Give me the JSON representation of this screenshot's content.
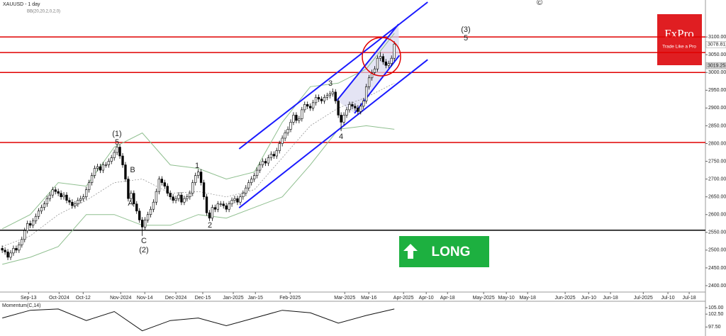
{
  "chart_data": {
    "type": "candlestick",
    "title": "XAUUSD - 1 day",
    "indicator_label": "BB(20,20,2,0,2,0)",
    "copyright": "©",
    "logo": {
      "brand": "FxPro",
      "tagline": "Trade Like a Pro"
    },
    "signal": "LONG",
    "open": [
      2505,
      2500,
      2495,
      2480,
      2492,
      2505,
      2500,
      2515,
      2530,
      2555,
      2575,
      2570,
      2582,
      2595,
      2610,
      2620,
      2630,
      2645,
      2655,
      2670,
      2665,
      2660,
      2650,
      2655,
      2640,
      2635,
      2625,
      2630,
      2640,
      2645,
      2650,
      2670,
      2690,
      2710,
      2730,
      2735,
      2725,
      2740,
      2740,
      2750,
      2760,
      2775,
      2790,
      2765,
      2740,
      2700,
      2645,
      2660,
      2630,
      2610,
      2585,
      2565,
      2585,
      2600,
      2615,
      2635,
      2665,
      2700,
      2690,
      2680,
      2660,
      2650,
      2640,
      2645,
      2655,
      2635,
      2645,
      2650,
      2660,
      2690,
      2710,
      2720,
      2690,
      2650,
      2605,
      2590,
      2620,
      2615,
      2630,
      2630,
      2625,
      2615,
      2630,
      2640,
      2645,
      2635,
      2650,
      2660,
      2675,
      2690,
      2700,
      2710,
      2725,
      2740,
      2750,
      2745,
      2760,
      2770,
      2765,
      2780,
      2800,
      2815,
      2830,
      2840,
      2860,
      2880,
      2865,
      2870,
      2895,
      2910,
      2905,
      2900,
      2915,
      2930,
      2925,
      2920,
      2930,
      2935,
      2940,
      2945,
      2920,
      2880,
      2860,
      2880,
      2895,
      2910,
      2905,
      2900,
      2890,
      2905,
      2920,
      2960,
      2985,
      3000,
      3010,
      3040,
      3045,
      3030,
      3020,
      3025,
      3040
    ],
    "high": [
      2513,
      2508,
      2503,
      2500,
      2513,
      2513,
      2523,
      2538,
      2563,
      2583,
      2583,
      2590,
      2603,
      2618,
      2628,
      2638,
      2653,
      2663,
      2678,
      2678,
      2673,
      2668,
      2663,
      2663,
      2648,
      2643,
      2638,
      2648,
      2653,
      2658,
      2678,
      2698,
      2718,
      2738,
      2743,
      2743,
      2748,
      2748,
      2758,
      2768,
      2783,
      2798,
      2798,
      2773,
      2748,
      2708,
      2668,
      2668,
      2638,
      2618,
      2593,
      2593,
      2608,
      2623,
      2643,
      2673,
      2708,
      2708,
      2698,
      2688,
      2668,
      2658,
      2653,
      2663,
      2663,
      2653,
      2658,
      2668,
      2698,
      2718,
      2728,
      2728,
      2698,
      2658,
      2613,
      2628,
      2628,
      2638,
      2638,
      2638,
      2633,
      2638,
      2648,
      2653,
      2653,
      2658,
      2668,
      2683,
      2698,
      2708,
      2718,
      2733,
      2748,
      2758,
      2758,
      2768,
      2778,
      2778,
      2788,
      2808,
      2823,
      2838,
      2848,
      2868,
      2888,
      2888,
      2878,
      2903,
      2918,
      2918,
      2913,
      2923,
      2938,
      2938,
      2933,
      2938,
      2943,
      2948,
      2955,
      2953,
      2928,
      2888,
      2888,
      2903,
      2918,
      2918,
      2913,
      2908,
      2913,
      2928,
      2968,
      2993,
      3008,
      3018,
      3048,
      3057,
      3053,
      3038,
      3033,
      3048,
      3088
    ],
    "low": [
      2492,
      2487,
      2472,
      2472,
      2484,
      2492,
      2492,
      2507,
      2522,
      2547,
      2562,
      2562,
      2574,
      2587,
      2602,
      2612,
      2622,
      2637,
      2647,
      2657,
      2652,
      2642,
      2642,
      2632,
      2627,
      2617,
      2617,
      2622,
      2632,
      2637,
      2642,
      2662,
      2682,
      2702,
      2722,
      2717,
      2717,
      2732,
      2732,
      2742,
      2752,
      2767,
      2757,
      2732,
      2692,
      2637,
      2637,
      2622,
      2602,
      2577,
      2540,
      2557,
      2577,
      2592,
      2607,
      2627,
      2657,
      2682,
      2672,
      2652,
      2642,
      2632,
      2632,
      2637,
      2627,
      2627,
      2637,
      2642,
      2652,
      2682,
      2702,
      2682,
      2642,
      2597,
      2582,
      2582,
      2607,
      2607,
      2622,
      2617,
      2607,
      2607,
      2622,
      2632,
      2627,
      2627,
      2642,
      2652,
      2667,
      2682,
      2692,
      2702,
      2717,
      2732,
      2737,
      2737,
      2752,
      2757,
      2757,
      2772,
      2792,
      2807,
      2822,
      2832,
      2852,
      2857,
      2857,
      2862,
      2887,
      2897,
      2892,
      2892,
      2907,
      2917,
      2912,
      2912,
      2922,
      2927,
      2932,
      2912,
      2872,
      2835,
      2852,
      2872,
      2887,
      2897,
      2892,
      2882,
      2882,
      2897,
      2912,
      2952,
      2977,
      2992,
      3002,
      3032,
      3022,
      3012,
      3012,
      3017,
      3032
    ],
    "close": [
      2500,
      2495,
      2480,
      2492,
      2505,
      2500,
      2515,
      2530,
      2555,
      2575,
      2570,
      2582,
      2595,
      2610,
      2620,
      2630,
      2645,
      2655,
      2670,
      2665,
      2660,
      2650,
      2655,
      2640,
      2635,
      2625,
      2630,
      2640,
      2645,
      2650,
      2670,
      2690,
      2710,
      2730,
      2735,
      2725,
      2740,
      2740,
      2750,
      2760,
      2775,
      2790,
      2765,
      2740,
      2700,
      2645,
      2660,
      2630,
      2610,
      2585,
      2565,
      2585,
      2600,
      2615,
      2635,
      2665,
      2700,
      2690,
      2680,
      2660,
      2650,
      2640,
      2645,
      2655,
      2635,
      2645,
      2650,
      2660,
      2690,
      2710,
      2720,
      2690,
      2650,
      2605,
      2590,
      2620,
      2615,
      2630,
      2630,
      2625,
      2615,
      2630,
      2640,
      2645,
      2635,
      2650,
      2660,
      2675,
      2690,
      2700,
      2710,
      2725,
      2740,
      2750,
      2745,
      2760,
      2770,
      2765,
      2780,
      2800,
      2815,
      2830,
      2840,
      2860,
      2880,
      2865,
      2870,
      2895,
      2910,
      2905,
      2900,
      2915,
      2930,
      2925,
      2920,
      2930,
      2935,
      2940,
      2945,
      2920,
      2880,
      2860,
      2880,
      2895,
      2910,
      2905,
      2900,
      2890,
      2905,
      2920,
      2960,
      2985,
      3000,
      3010,
      3040,
      3045,
      3030,
      3020,
      3025,
      3040,
      3080
    ],
    "bands": {
      "x": [
        0,
        10,
        20,
        30,
        40,
        50,
        60,
        70,
        80,
        90,
        100,
        110,
        120,
        130,
        140
      ],
      "upper": [
        2560,
        2600,
        2690,
        2680,
        2790,
        2830,
        2740,
        2730,
        2700,
        2720,
        2860,
        2960,
        2970,
        3010,
        3110
      ],
      "mid": [
        2510,
        2540,
        2600,
        2640,
        2690,
        2700,
        2660,
        2665,
        2650,
        2670,
        2760,
        2850,
        2900,
        2930,
        2970
      ],
      "lower": [
        2460,
        2480,
        2510,
        2600,
        2600,
        2570,
        2570,
        2600,
        2590,
        2620,
        2650,
        2740,
        2840,
        2850,
        2840
      ],
      "color": "#8fbf8f"
    },
    "levels": [
      {
        "value": 3100,
        "color": "#e00000"
      },
      {
        "value": 3056,
        "color": "#e00000"
      },
      {
        "value": 3000,
        "color": "#e00000"
      },
      {
        "value": 2803,
        "color": "#e00000"
      },
      {
        "value": 2556,
        "color": "#000000"
      }
    ],
    "trend_lines": [
      {
        "x": [
          84.6,
          151.9
        ],
        "y": [
          2785,
          3198
        ],
        "color": "#1a1aff"
      },
      {
        "x": [
          84.6,
          151.9
        ],
        "y": [
          2619,
          3036
        ],
        "color": "#1a1aff"
      },
      {
        "x": [
          119.5,
          141.5
        ],
        "y": [
          2921,
          3136
        ],
        "color": "#1a1aff"
      },
      {
        "x": [
          125.8,
          141.8
        ],
        "y": [
          2885,
          3048
        ],
        "color": "#1a1aff"
      }
    ],
    "wave_labels": [
      "(1)",
      "5",
      "B",
      "A",
      "C",
      "(2)",
      "1",
      "2",
      "3",
      "4",
      "(3)",
      "5"
    ],
    "price_tags": [
      3078.81,
      3019.25
    ],
    "xlim": [
      -0.8,
      251.1
    ],
    "xticks": [
      {
        "value": 9.4,
        "label": "Sep-13"
      },
      {
        "value": 20.3,
        "label": "Oct-2024"
      },
      {
        "value": 28.9,
        "label": "Oct-12"
      },
      {
        "value": 42.3,
        "label": "Nov-2024"
      },
      {
        "value": 50.9,
        "label": "Nov-14"
      },
      {
        "value": 62,
        "label": "Dec-2024"
      },
      {
        "value": 71.6,
        "label": "Dec-15"
      },
      {
        "value": 82.5,
        "label": "Jan-2025"
      },
      {
        "value": 90.4,
        "label": "Jan-15"
      },
      {
        "value": 102.8,
        "label": "Feb-2025"
      },
      {
        "value": 122.3,
        "label": "Mar-2025"
      },
      {
        "value": 130.9,
        "label": "Mar-16"
      },
      {
        "value": 143.3,
        "label": "Apr-2025"
      },
      {
        "value": 151.4,
        "label": "Apr-10"
      },
      {
        "value": 159,
        "label": "Apr-18"
      },
      {
        "value": 171.9,
        "label": "May-2025"
      },
      {
        "value": 180,
        "label": "May-10"
      },
      {
        "value": 187.6,
        "label": "May-18"
      },
      {
        "value": 201,
        "label": "Jun-2025"
      },
      {
        "value": 209.4,
        "label": "Jun-10"
      },
      {
        "value": 217.2,
        "label": "Jun-18"
      },
      {
        "value": 228.9,
        "label": "Jul-2025"
      },
      {
        "value": 237.7,
        "label": "Jul-10"
      },
      {
        "value": 245.3,
        "label": "Jul-18"
      }
    ],
    "ylim": [
      2382,
      3204
    ],
    "yticks": [
      {
        "value": 3100,
        "label": "3100.00"
      },
      {
        "value": 3050,
        "label": "3050.00"
      },
      {
        "value": 3000,
        "label": "3000.00"
      },
      {
        "value": 2950,
        "label": "2950.00"
      },
      {
        "value": 2900,
        "label": "2900.00"
      },
      {
        "value": 2850,
        "label": "2850.00"
      },
      {
        "value": 2800,
        "label": "2800.00"
      },
      {
        "value": 2750,
        "label": "2750.00"
      },
      {
        "value": 2700,
        "label": "2700.00"
      },
      {
        "value": 2650,
        "label": "2650.00"
      },
      {
        "value": 2600,
        "label": "2600.00"
      },
      {
        "value": 2550,
        "label": "2550.00"
      },
      {
        "value": 2500,
        "label": "2500.00"
      },
      {
        "value": 2450,
        "label": "2450.00"
      },
      {
        "value": 2400,
        "label": "2400.00"
      }
    ],
    "momentum": {
      "name": "Momentum(C,14)",
      "x": [
        0,
        10,
        20,
        30,
        40,
        50,
        60,
        70,
        80,
        90,
        100,
        110,
        120,
        130,
        140
      ],
      "values": [
        101,
        104,
        104.5,
        100,
        103.5,
        96,
        100,
        101,
        98,
        101,
        104,
        103,
        99,
        102,
        104.5
      ],
      "ylim": [
        94,
        107.5
      ],
      "yticks": [
        {
          "value": 105,
          "label": "105.00"
        },
        {
          "value": 102.5,
          "label": "102.50"
        },
        {
          "value": 97.5,
          "label": "97.50"
        }
      ]
    }
  }
}
